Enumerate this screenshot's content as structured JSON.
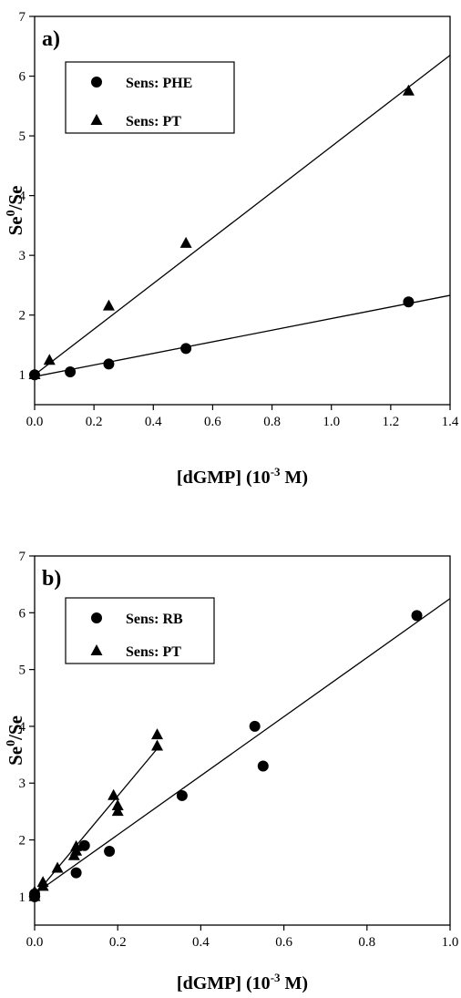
{
  "chart_data": [
    {
      "type": "scatter",
      "panel_label": "a)",
      "xlabel_main": "[dGMP] (10",
      "xlabel_sup": "-3",
      "xlabel_end": " M)",
      "ylabel_main": "Se",
      "ylabel_sup": "0",
      "ylabel_end": "/Se",
      "xlim": [
        0,
        1.4
      ],
      "ylim": [
        0.5,
        7
      ],
      "xticks": [
        "0.0",
        "0.2",
        "0.4",
        "0.6",
        "0.8",
        "1.0",
        "1.2",
        "1.4"
      ],
      "yticks": [
        "1",
        "2",
        "3",
        "4",
        "5",
        "6",
        "7"
      ],
      "legend_placement": "top-left",
      "series": [
        {
          "name": "Sens: PHE",
          "marker": "circle",
          "x": [
            0.0,
            0.12,
            0.25,
            0.51,
            1.26
          ],
          "y": [
            1.0,
            1.05,
            1.18,
            1.44,
            2.22
          ],
          "fit": [
            [
              0.0,
              0.97
            ],
            [
              1.4,
              2.33
            ]
          ]
        },
        {
          "name": "Sens: PT",
          "marker": "triangle",
          "x": [
            0.0,
            0.05,
            0.25,
            0.51,
            1.26
          ],
          "y": [
            1.0,
            1.24,
            2.15,
            3.2,
            5.75
          ],
          "fit": [
            [
              0.0,
              1.0
            ],
            [
              1.4,
              6.35
            ]
          ]
        }
      ]
    },
    {
      "type": "scatter",
      "panel_label": "b)",
      "xlabel_main": "[dGMP] (10",
      "xlabel_sup": "-3",
      "xlabel_end": " M)",
      "ylabel_main": "Se",
      "ylabel_sup": "0",
      "ylabel_end": "/Se",
      "xlim": [
        0,
        1.0
      ],
      "ylim": [
        0.5,
        7
      ],
      "xticks": [
        "0.0",
        "0.2",
        "0.4",
        "0.6",
        "0.8",
        "1.0"
      ],
      "yticks": [
        "1",
        "2",
        "3",
        "4",
        "5",
        "6",
        "7"
      ],
      "legend_placement": "top-left",
      "series": [
        {
          "name": "Sens: RB",
          "marker": "circle",
          "x": [
            0.0,
            0.0,
            0.1,
            0.12,
            0.18,
            0.355,
            0.53,
            0.55,
            0.92
          ],
          "y": [
            1.0,
            1.05,
            1.42,
            1.9,
            1.8,
            2.78,
            4.0,
            3.3,
            5.95
          ],
          "fit": [
            [
              0.0,
              1.05
            ],
            [
              1.0,
              6.25
            ]
          ]
        },
        {
          "name": "Sens: PT",
          "marker": "triangle",
          "x": [
            0.0,
            0.0,
            0.02,
            0.02,
            0.055,
            0.095,
            0.1,
            0.1,
            0.19,
            0.2,
            0.2,
            0.295,
            0.295
          ],
          "y": [
            1.0,
            1.08,
            1.18,
            1.25,
            1.5,
            1.72,
            1.8,
            1.88,
            2.78,
            2.5,
            2.6,
            3.65,
            3.85
          ],
          "fit": [
            [
              0.0,
              1.02
            ],
            [
              0.3,
              3.65
            ]
          ]
        }
      ]
    }
  ]
}
